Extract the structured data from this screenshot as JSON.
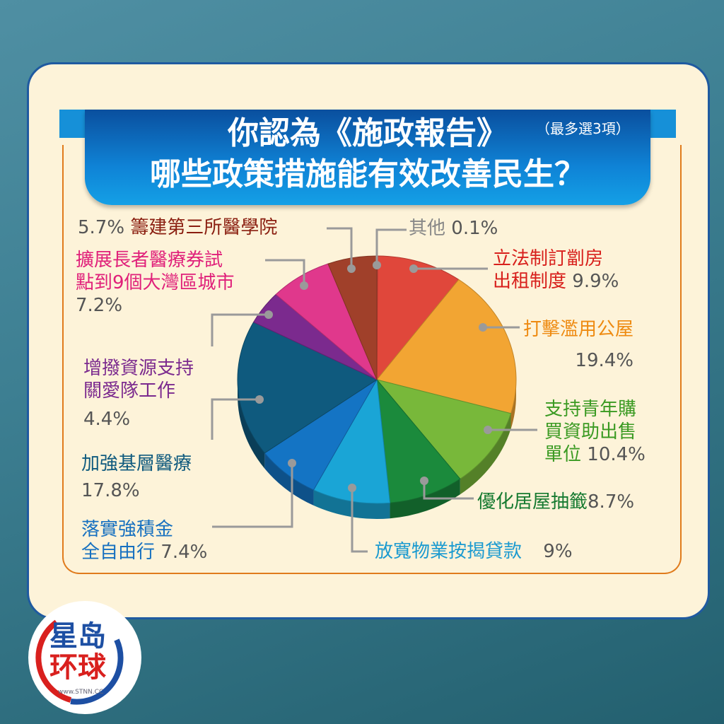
{
  "title": {
    "line1": "你認為《施政報告》",
    "line2": "哪些政策措施能有效改善民生？",
    "note": "（最多選3項）"
  },
  "logo": {
    "text1": "星岛",
    "text2": "环球",
    "url": "www.STNN.CC"
  },
  "chart_data": {
    "type": "pie",
    "title": "你認為《施政報告》哪些政策措施能有效改善民生？",
    "subtitle": "（最多選3項）",
    "slices": [
      {
        "label": "其他",
        "value": 0.1,
        "pct": "0.1%",
        "color": "#9aa0a0"
      },
      {
        "label": "立法制訂劏房出租制度",
        "value": 9.9,
        "pct": "9.9%",
        "color": "#e0473b"
      },
      {
        "label": "打擊濫用公屋",
        "value": 19.4,
        "pct": "19.4%",
        "color": "#f2a533"
      },
      {
        "label": "支持青年購買資助出售單位",
        "value": 10.4,
        "pct": "10.4%",
        "color": "#78b83a"
      },
      {
        "label": "優化居屋抽籤",
        "value": 8.7,
        "pct": "8.7%",
        "color": "#1b8a3c"
      },
      {
        "label": "放寬物業按揭貸款",
        "value": 9,
        "pct": "9%",
        "color": "#1aa5d6"
      },
      {
        "label": "落實強積金全自由行",
        "value": 7.4,
        "pct": "7.4%",
        "color": "#1474c4"
      },
      {
        "label": "加強基層醫療",
        "value": 17.8,
        "pct": "17.8%",
        "color": "#0f5a7e"
      },
      {
        "label": "增撥資源支持關愛隊工作",
        "value": 4.4,
        "pct": "4.4%",
        "color": "#7b2a8e"
      },
      {
        "label": "擴展長者醫療券試點到9個大灣區城市",
        "value": 7.2,
        "pct": "7.2%",
        "color": "#e0388c"
      },
      {
        "label": "籌建第三所醫學院",
        "value": 5.7,
        "pct": "5.7%",
        "color": "#a0402a"
      }
    ],
    "display_labels": {
      "other": "其他",
      "subdivided": [
        "立法制訂劏房",
        "出租制度"
      ],
      "public_housing": "打擊濫用公屋",
      "youth": [
        "支持青年購",
        "買資助出售",
        "單位"
      ],
      "hos": "優化居屋抽籤",
      "mortgage": "放寬物業按揭貸款",
      "mpf": [
        "落實強積金",
        "全自由行"
      ],
      "primary": "加強基層醫療",
      "care": [
        "增撥資源支持",
        "關愛隊工作"
      ],
      "voucher": [
        "擴展長者醫療券試",
        "點到9個大灣區城市"
      ],
      "medschool": "籌建第三所醫學院"
    }
  }
}
